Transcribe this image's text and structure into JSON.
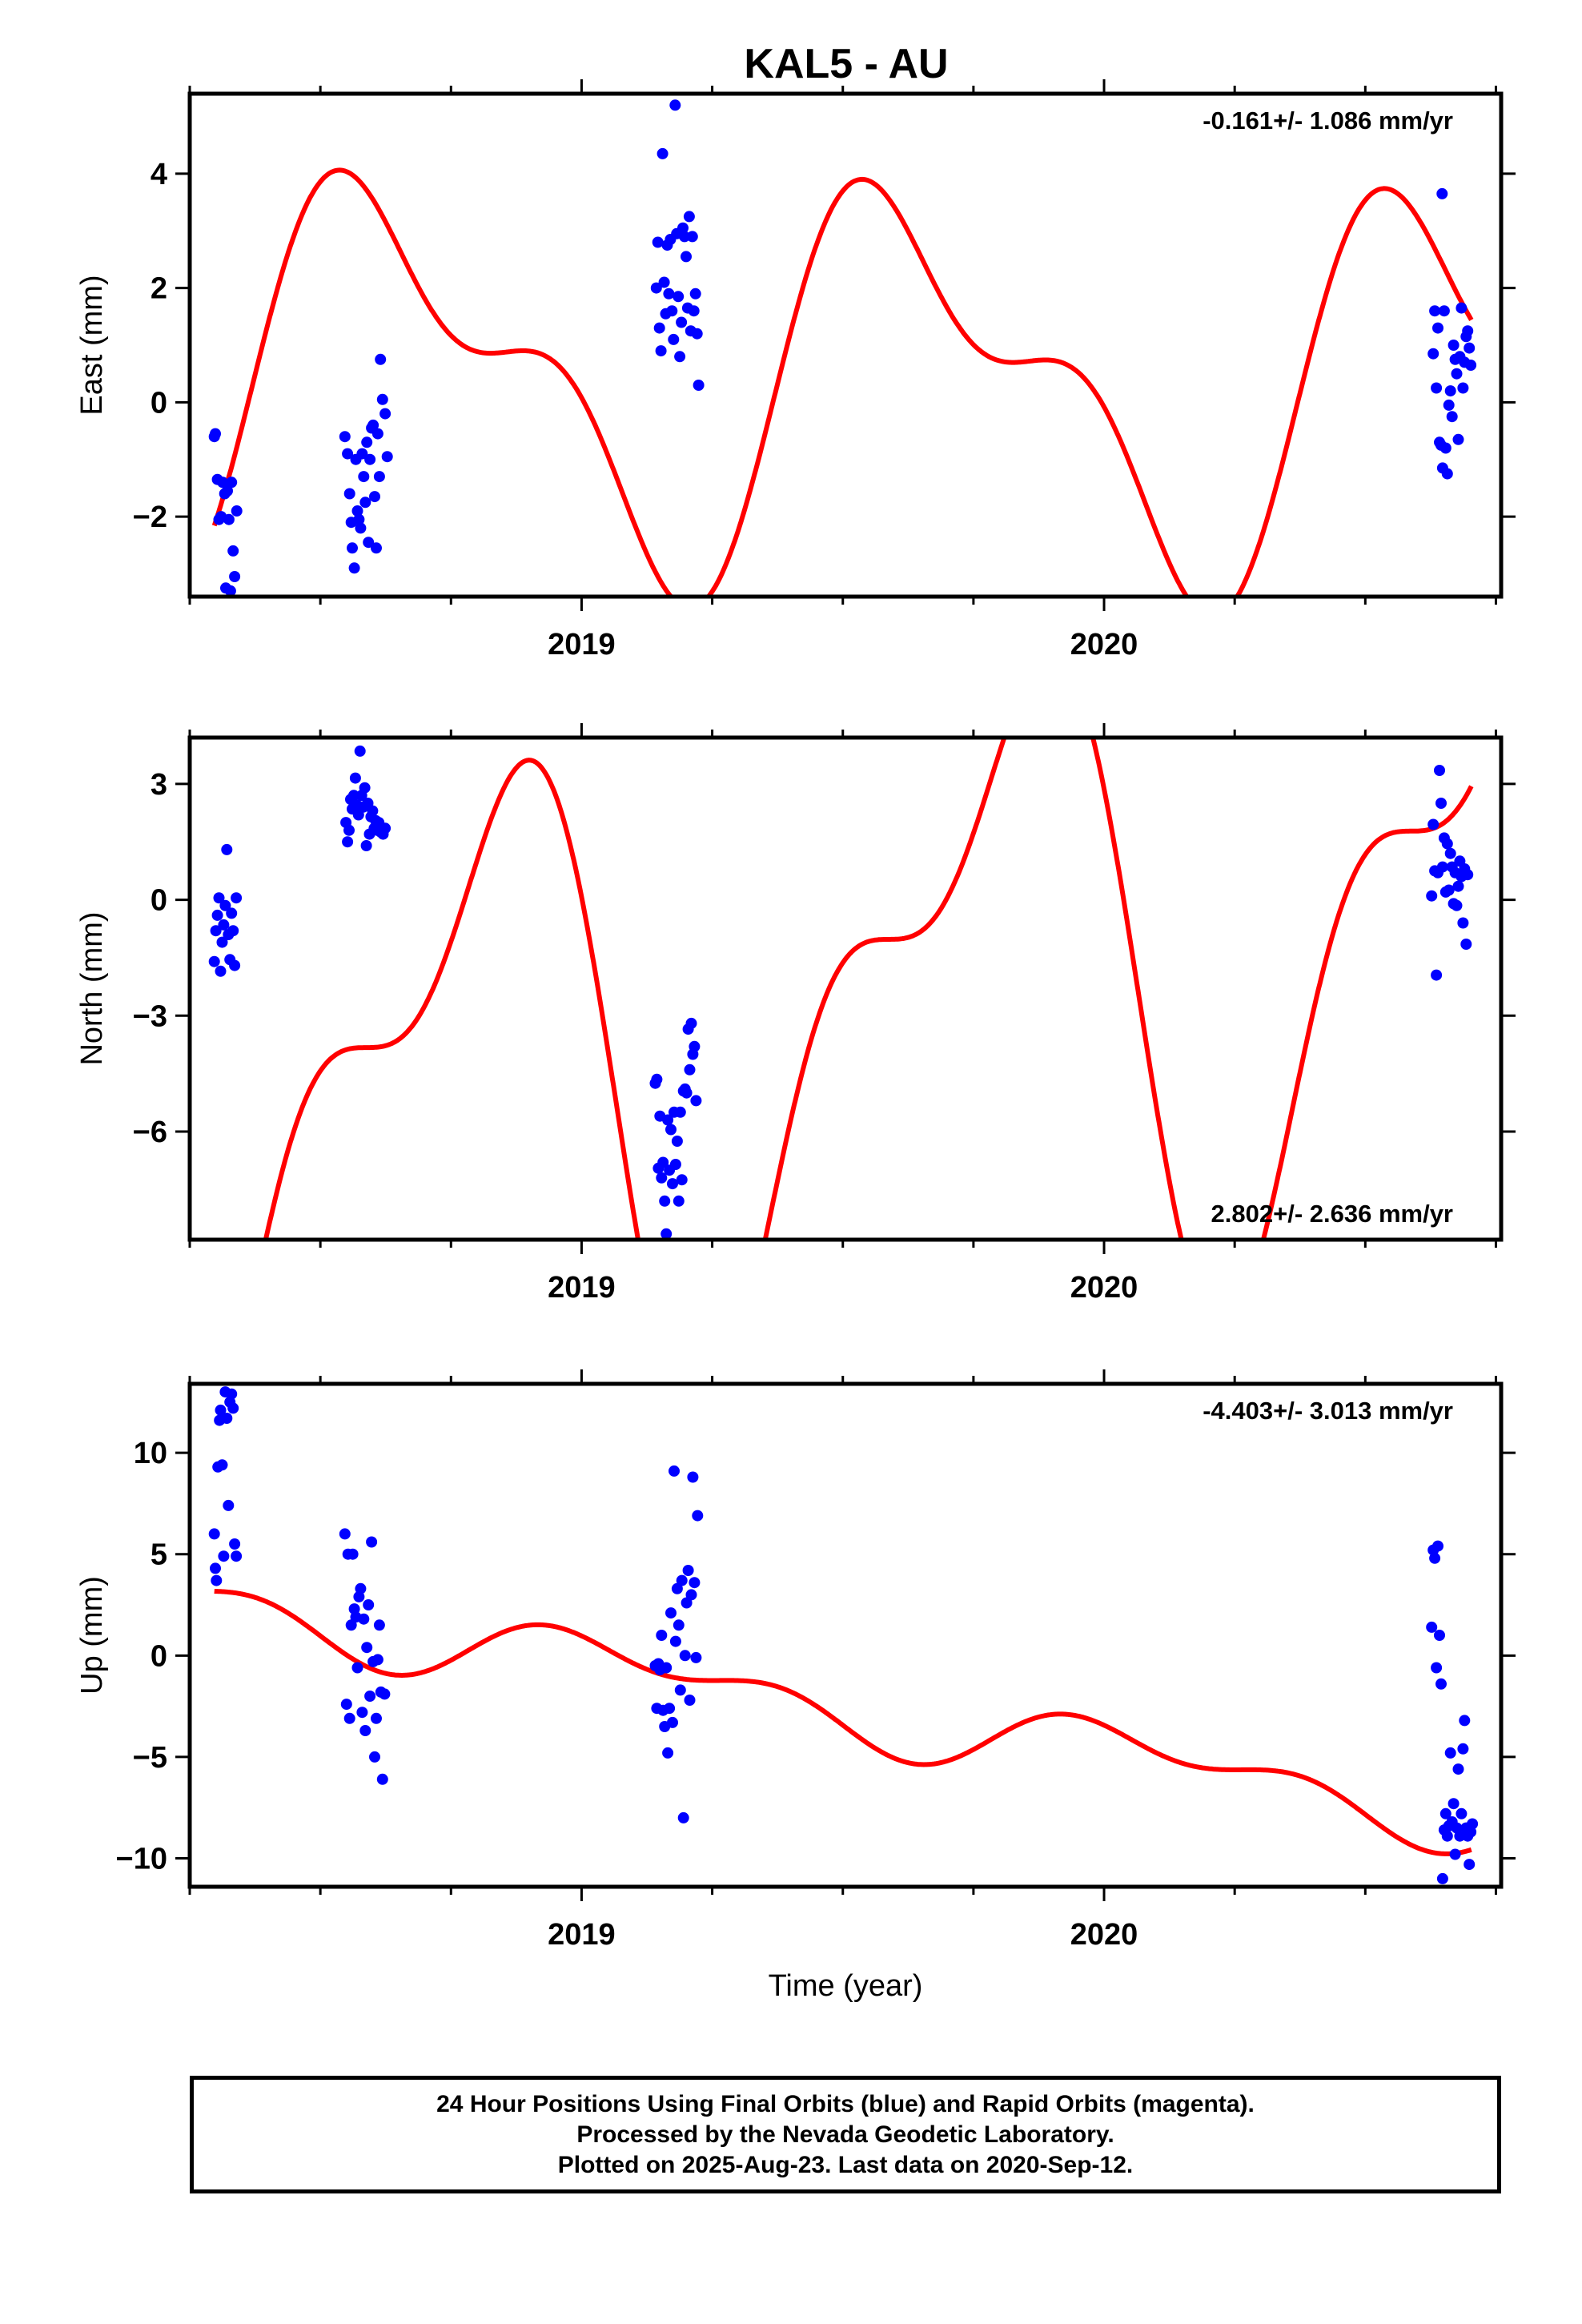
{
  "title": "KAL5 - AU",
  "footer": {
    "lines": [
      "24 Hour Positions Using Final Orbits (blue) and Rapid Orbits (magenta).",
      "Processed by the Nevada Geodetic Laboratory.",
      "Plotted on 2025-Aug-23. Last data on 2020-Sep-12."
    ]
  },
  "colors": {
    "points": "#0000ff",
    "model": "#ff0000",
    "axes": "#000000"
  },
  "chart_data": [
    {
      "type": "scatter",
      "title": "KAL5 - AU",
      "ylabel": "East (mm)",
      "xlabel": "",
      "xlim": [
        2018.25,
        2020.76
      ],
      "ylim": [
        -3.4,
        5.4
      ],
      "xticks": [
        "2019",
        "2020"
      ],
      "yticks": [
        -2,
        0,
        2,
        4
      ],
      "ytick_labels": [
        "−2",
        "0",
        "2",
        "4"
      ],
      "rate_text": "-0.161+/- 1.086 mm/yr",
      "rate_position": "top-right",
      "model": {
        "offset": 0.43,
        "trend": -0.161,
        "a1": -2.2,
        "b1": -1.85,
        "a2": -0.2,
        "b2": 1.5
      },
      "points": [
        [
          2018.297,
          -0.6
        ],
        [
          2018.299,
          -0.55
        ],
        [
          2018.303,
          -1.35
        ],
        [
          2018.306,
          -2.05
        ],
        [
          2018.31,
          -2.0
        ],
        [
          2018.313,
          -1.4
        ],
        [
          2018.317,
          -1.6
        ],
        [
          2018.319,
          -3.25
        ],
        [
          2018.322,
          -1.55
        ],
        [
          2018.325,
          -2.05
        ],
        [
          2018.328,
          -3.3
        ],
        [
          2018.33,
          -1.4
        ],
        [
          2018.333,
          -2.6
        ],
        [
          2018.336,
          -3.05
        ],
        [
          2018.34,
          -1.9
        ],
        [
          2018.547,
          -0.6
        ],
        [
          2018.552,
          -0.9
        ],
        [
          2018.556,
          -1.6
        ],
        [
          2018.559,
          -2.1
        ],
        [
          2018.561,
          -2.55
        ],
        [
          2018.565,
          -2.9
        ],
        [
          2018.568,
          -1.0
        ],
        [
          2018.571,
          -1.9
        ],
        [
          2018.574,
          -2.05
        ],
        [
          2018.577,
          -2.2
        ],
        [
          2018.58,
          -0.9
        ],
        [
          2018.583,
          -1.3
        ],
        [
          2018.586,
          -1.75
        ],
        [
          2018.589,
          -0.7
        ],
        [
          2018.592,
          -2.45
        ],
        [
          2018.595,
          -1.0
        ],
        [
          2018.598,
          -0.45
        ],
        [
          2018.601,
          -0.4
        ],
        [
          2018.604,
          -1.65
        ],
        [
          2018.607,
          -2.55
        ],
        [
          2018.61,
          -0.55
        ],
        [
          2018.613,
          -1.3
        ],
        [
          2018.615,
          0.75
        ],
        [
          2018.619,
          0.05
        ],
        [
          2018.624,
          -0.2
        ],
        [
          2018.628,
          -0.95
        ],
        [
          2019.143,
          2.0
        ],
        [
          2019.146,
          2.8
        ],
        [
          2019.149,
          1.3
        ],
        [
          2019.152,
          0.9
        ],
        [
          2019.155,
          4.35
        ],
        [
          2019.158,
          2.1
        ],
        [
          2019.161,
          1.55
        ],
        [
          2019.164,
          2.75
        ],
        [
          2019.167,
          1.9
        ],
        [
          2019.17,
          2.85
        ],
        [
          2019.173,
          1.6
        ],
        [
          2019.176,
          1.1
        ],
        [
          2019.179,
          5.2
        ],
        [
          2019.182,
          2.95
        ],
        [
          2019.185,
          1.85
        ],
        [
          2019.188,
          0.8
        ],
        [
          2019.191,
          1.4
        ],
        [
          2019.194,
          3.05
        ],
        [
          2019.197,
          2.9
        ],
        [
          2019.2,
          2.55
        ],
        [
          2019.203,
          1.65
        ],
        [
          2019.206,
          3.25
        ],
        [
          2019.209,
          1.25
        ],
        [
          2019.212,
          2.9
        ],
        [
          2019.215,
          1.6
        ],
        [
          2019.218,
          1.9
        ],
        [
          2019.221,
          1.2
        ],
        [
          2019.224,
          0.3
        ],
        [
          2020.63,
          0.85
        ],
        [
          2020.633,
          1.6
        ],
        [
          2020.636,
          0.25
        ],
        [
          2020.639,
          1.3
        ],
        [
          2020.642,
          -0.7
        ],
        [
          2020.645,
          -0.75
        ],
        [
          2020.648,
          -1.15
        ],
        [
          2020.651,
          1.6
        ],
        [
          2020.654,
          -0.8
        ],
        [
          2020.657,
          -1.25
        ],
        [
          2020.66,
          -0.05
        ],
        [
          2020.663,
          0.2
        ],
        [
          2020.666,
          -0.25
        ],
        [
          2020.669,
          1.0
        ],
        [
          2020.672,
          0.75
        ],
        [
          2020.675,
          0.5
        ],
        [
          2020.678,
          -0.65
        ],
        [
          2020.681,
          0.8
        ],
        [
          2020.684,
          1.65
        ],
        [
          2020.687,
          0.25
        ],
        [
          2020.69,
          0.7
        ],
        [
          2020.693,
          1.15
        ],
        [
          2020.696,
          1.25
        ],
        [
          2020.699,
          0.95
        ],
        [
          2020.702,
          0.65
        ],
        [
          2020.647,
          3.65
        ]
      ]
    },
    {
      "type": "scatter",
      "ylabel": "North (mm)",
      "xlabel": "",
      "xlim": [
        2018.25,
        2020.76
      ],
      "ylim": [
        -8.8,
        4.2
      ],
      "xticks": [
        "2019",
        "2020"
      ],
      "yticks": [
        -6,
        -3,
        0,
        3
      ],
      "ytick_labels": [
        "−6",
        "−3",
        "0",
        "3"
      ],
      "rate_text": "2.802+/- 2.636 mm/yr",
      "rate_position": "bottom-right",
      "model": {
        "offset": -4.43,
        "trend": 2.802,
        "a1": -7.0,
        "b1": 1.55,
        "a2": -2.15,
        "b2": 2.95
      },
      "points": [
        [
          2018.297,
          -1.6
        ],
        [
          2018.3,
          -0.8
        ],
        [
          2018.303,
          -0.4
        ],
        [
          2018.306,
          0.05
        ],
        [
          2018.309,
          -1.85
        ],
        [
          2018.312,
          -1.1
        ],
        [
          2018.315,
          -0.65
        ],
        [
          2018.318,
          -0.15
        ],
        [
          2018.321,
          1.3
        ],
        [
          2018.324,
          -0.9
        ],
        [
          2018.327,
          -1.55
        ],
        [
          2018.33,
          -0.35
        ],
        [
          2018.333,
          -0.8
        ],
        [
          2018.336,
          -1.7
        ],
        [
          2018.339,
          0.05
        ],
        [
          2018.549,
          2.0
        ],
        [
          2018.552,
          1.5
        ],
        [
          2018.555,
          1.8
        ],
        [
          2018.558,
          2.6
        ],
        [
          2018.561,
          2.35
        ],
        [
          2018.564,
          2.7
        ],
        [
          2018.567,
          3.15
        ],
        [
          2018.57,
          2.45
        ],
        [
          2018.573,
          2.2
        ],
        [
          2018.576,
          3.85
        ],
        [
          2018.579,
          2.7
        ],
        [
          2018.582,
          2.4
        ],
        [
          2018.585,
          2.9
        ],
        [
          2018.588,
          1.4
        ],
        [
          2018.591,
          2.5
        ],
        [
          2018.594,
          1.7
        ],
        [
          2018.597,
          2.15
        ],
        [
          2018.6,
          2.3
        ],
        [
          2018.603,
          1.85
        ],
        [
          2018.606,
          2.05
        ],
        [
          2018.609,
          1.8
        ],
        [
          2018.612,
          2.0
        ],
        [
          2018.616,
          1.75
        ],
        [
          2018.62,
          1.7
        ],
        [
          2018.624,
          1.85
        ],
        [
          2019.141,
          -4.75
        ],
        [
          2019.144,
          -4.65
        ],
        [
          2019.147,
          -6.95
        ],
        [
          2019.15,
          -5.6
        ],
        [
          2019.153,
          -7.2
        ],
        [
          2019.156,
          -6.8
        ],
        [
          2019.159,
          -7.8
        ],
        [
          2019.162,
          -8.65
        ],
        [
          2019.165,
          -5.7
        ],
        [
          2019.168,
          -7.0
        ],
        [
          2019.171,
          -5.95
        ],
        [
          2019.174,
          -7.35
        ],
        [
          2019.177,
          -5.5
        ],
        [
          2019.18,
          -6.85
        ],
        [
          2019.183,
          -6.25
        ],
        [
          2019.186,
          -7.8
        ],
        [
          2019.189,
          -5.5
        ],
        [
          2019.192,
          -7.25
        ],
        [
          2019.195,
          -4.95
        ],
        [
          2019.198,
          -4.9
        ],
        [
          2019.201,
          -5.0
        ],
        [
          2019.204,
          -3.35
        ],
        [
          2019.207,
          -4.4
        ],
        [
          2019.21,
          -3.2
        ],
        [
          2019.213,
          -4.0
        ],
        [
          2019.216,
          -3.8
        ],
        [
          2019.219,
          -5.2
        ],
        [
          2020.627,
          0.1
        ],
        [
          2020.63,
          1.95
        ],
        [
          2020.633,
          0.75
        ],
        [
          2020.636,
          -1.95
        ],
        [
          2020.639,
          0.7
        ],
        [
          2020.642,
          3.35
        ],
        [
          2020.645,
          2.5
        ],
        [
          2020.648,
          0.85
        ],
        [
          2020.651,
          1.6
        ],
        [
          2020.654,
          0.2
        ],
        [
          2020.657,
          1.45
        ],
        [
          2020.66,
          0.25
        ],
        [
          2020.663,
          1.2
        ],
        [
          2020.666,
          0.85
        ],
        [
          2020.669,
          -0.1
        ],
        [
          2020.672,
          0.7
        ],
        [
          2020.675,
          -0.15
        ],
        [
          2020.678,
          0.35
        ],
        [
          2020.681,
          1.0
        ],
        [
          2020.684,
          0.6
        ],
        [
          2020.687,
          -0.6
        ],
        [
          2020.69,
          0.8
        ],
        [
          2020.693,
          -1.15
        ],
        [
          2020.696,
          0.65
        ]
      ]
    },
    {
      "type": "scatter",
      "ylabel": "Up (mm)",
      "xlabel": "Time (year)",
      "xlim": [
        2018.25,
        2020.76
      ],
      "ylim": [
        -11.4,
        13.4
      ],
      "xticks": [
        "2019",
        "2020"
      ],
      "yticks": [
        -10,
        -5,
        0,
        5,
        10
      ],
      "ytick_labels": [
        "−10",
        "−5",
        "0",
        "5",
        "10"
      ],
      "rate_text": "-4.403+/- 3.013 mm/yr",
      "rate_position": "top-right",
      "model": {
        "offset": -0.43,
        "trend": -4.403,
        "a1": 0.6,
        "b1": 1.1,
        "a2": -0.9,
        "b2": 0.3
      },
      "points": [
        [
          2018.297,
          6.0
        ],
        [
          2018.299,
          4.3
        ],
        [
          2018.301,
          3.7
        ],
        [
          2018.304,
          9.3
        ],
        [
          2018.307,
          11.6
        ],
        [
          2018.309,
          12.1
        ],
        [
          2018.312,
          9.4
        ],
        [
          2018.315,
          4.9
        ],
        [
          2018.318,
          13.0
        ],
        [
          2018.321,
          11.7
        ],
        [
          2018.324,
          7.4
        ],
        [
          2018.327,
          12.5
        ],
        [
          2018.33,
          12.9
        ],
        [
          2018.333,
          12.2
        ],
        [
          2018.336,
          5.5
        ],
        [
          2018.339,
          4.9
        ],
        [
          2018.547,
          6.0
        ],
        [
          2018.55,
          -2.4
        ],
        [
          2018.553,
          5.0
        ],
        [
          2018.556,
          -3.1
        ],
        [
          2018.559,
          1.5
        ],
        [
          2018.562,
          5.0
        ],
        [
          2018.565,
          2.3
        ],
        [
          2018.568,
          1.9
        ],
        [
          2018.571,
          -0.6
        ],
        [
          2018.574,
          2.9
        ],
        [
          2018.577,
          3.3
        ],
        [
          2018.58,
          -2.8
        ],
        [
          2018.583,
          1.8
        ],
        [
          2018.586,
          -3.7
        ],
        [
          2018.589,
          0.4
        ],
        [
          2018.592,
          2.5
        ],
        [
          2018.595,
          -2.0
        ],
        [
          2018.598,
          5.6
        ],
        [
          2018.601,
          -0.3
        ],
        [
          2018.604,
          -5.0
        ],
        [
          2018.607,
          -3.1
        ],
        [
          2018.61,
          -0.2
        ],
        [
          2018.613,
          1.5
        ],
        [
          2018.616,
          -1.8
        ],
        [
          2018.619,
          -6.1
        ],
        [
          2018.623,
          -1.9
        ],
        [
          2019.141,
          -0.5
        ],
        [
          2019.144,
          -2.6
        ],
        [
          2019.147,
          -0.4
        ],
        [
          2019.15,
          -0.7
        ],
        [
          2019.153,
          1.0
        ],
        [
          2019.156,
          -2.7
        ],
        [
          2019.159,
          -3.5
        ],
        [
          2019.162,
          -0.6
        ],
        [
          2019.165,
          -4.8
        ],
        [
          2019.168,
          -2.6
        ],
        [
          2019.171,
          2.1
        ],
        [
          2019.174,
          -3.3
        ],
        [
          2019.177,
          9.1
        ],
        [
          2019.18,
          0.7
        ],
        [
          2019.183,
          3.3
        ],
        [
          2019.186,
          1.5
        ],
        [
          2019.189,
          -1.7
        ],
        [
          2019.192,
          3.7
        ],
        [
          2019.195,
          -8.0
        ],
        [
          2019.198,
          0.0
        ],
        [
          2019.201,
          2.6
        ],
        [
          2019.204,
          4.2
        ],
        [
          2019.207,
          -2.2
        ],
        [
          2019.21,
          3.0
        ],
        [
          2019.213,
          8.8
        ],
        [
          2019.216,
          3.6
        ],
        [
          2019.219,
          -0.1
        ],
        [
          2019.222,
          6.9
        ],
        [
          2020.627,
          1.4
        ],
        [
          2020.63,
          5.2
        ],
        [
          2020.633,
          4.8
        ],
        [
          2020.636,
          -0.6
        ],
        [
          2020.639,
          5.4
        ],
        [
          2020.642,
          1.0
        ],
        [
          2020.645,
          -1.4
        ],
        [
          2020.648,
          -11.0
        ],
        [
          2020.651,
          -8.6
        ],
        [
          2020.654,
          -7.8
        ],
        [
          2020.657,
          -8.9
        ],
        [
          2020.66,
          -8.4
        ],
        [
          2020.663,
          -4.8
        ],
        [
          2020.666,
          -8.2
        ],
        [
          2020.669,
          -7.3
        ],
        [
          2020.672,
          -9.8
        ],
        [
          2020.675,
          -8.5
        ],
        [
          2020.678,
          -5.6
        ],
        [
          2020.681,
          -8.9
        ],
        [
          2020.684,
          -7.8
        ],
        [
          2020.687,
          -4.6
        ],
        [
          2020.69,
          -3.2
        ],
        [
          2020.693,
          -8.5
        ],
        [
          2020.696,
          -8.9
        ],
        [
          2020.699,
          -10.3
        ],
        [
          2020.702,
          -8.7
        ],
        [
          2020.705,
          -8.3
        ]
      ]
    }
  ]
}
